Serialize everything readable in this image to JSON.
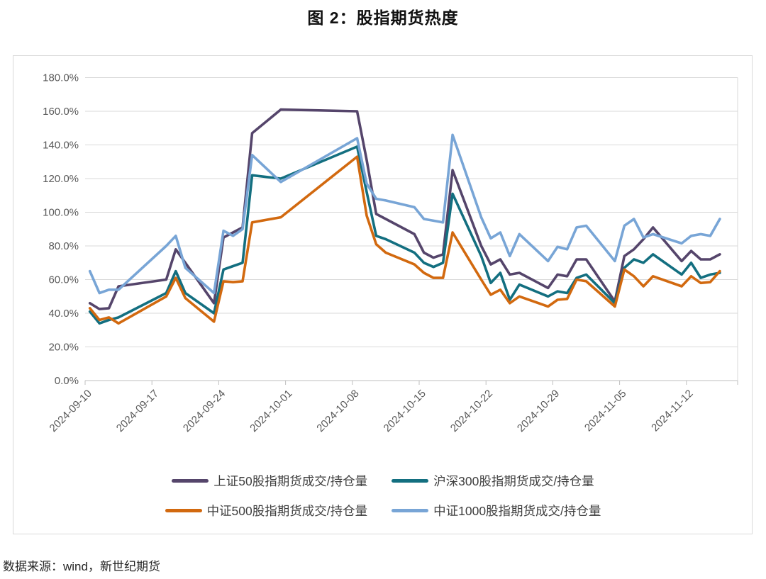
{
  "title": "图 2：股指期货热度",
  "source": "数据来源：wind，新世纪期货",
  "chart_data": {
    "type": "line",
    "unit": "%",
    "grid": true,
    "legend_position": "bottom",
    "y_axis": {
      "min": 0,
      "max": 180,
      "tick_labels": [
        "0.0%",
        "20.0%",
        "40.0%",
        "60.0%",
        "80.0%",
        "100.0%",
        "120.0%",
        "140.0%",
        "160.0%",
        "180.0%"
      ]
    },
    "x_axis": {
      "tick_labels": [
        "2024-09-10",
        "2024-09-17",
        "2024-09-24",
        "2024-10-01",
        "2024-10-08",
        "2024-10-15",
        "2024-10-22",
        "2024-10-29",
        "2024-11-05",
        "2024-11-12"
      ],
      "interval_days": 7
    },
    "dates": [
      "2024-09-10",
      "2024-09-11",
      "2024-09-12",
      "2024-09-13",
      "2024-09-18",
      "2024-09-19",
      "2024-09-20",
      "2024-09-23",
      "2024-09-24",
      "2024-09-25",
      "2024-09-26",
      "2024-09-27",
      "2024-09-30",
      "2024-10-08",
      "2024-10-09",
      "2024-10-10",
      "2024-10-11",
      "2024-10-14",
      "2024-10-15",
      "2024-10-16",
      "2024-10-17",
      "2024-10-18",
      "2024-10-21",
      "2024-10-22",
      "2024-10-23",
      "2024-10-24",
      "2024-10-25",
      "2024-10-28",
      "2024-10-29",
      "2024-10-30",
      "2024-10-31",
      "2024-11-01",
      "2024-11-04",
      "2024-11-05",
      "2024-11-06",
      "2024-11-07",
      "2024-11-08",
      "2024-11-11",
      "2024-11-12",
      "2024-11-13",
      "2024-11-14",
      "2024-11-15"
    ],
    "series": [
      {
        "name": "上证50股指期货成交/持仓量",
        "color": "#55456b",
        "values": [
          46,
          42.5,
          43,
          56,
          60,
          78,
          70,
          46,
          85,
          88,
          91,
          147,
          161,
          160,
          131,
          99,
          96,
          87,
          76,
          73,
          75,
          125,
          80,
          69,
          72,
          63,
          64,
          55,
          63,
          62,
          72,
          72,
          47,
          74,
          78,
          84,
          91,
          71,
          77,
          72,
          72,
          75
        ]
      },
      {
        "name": "沪深300股指期货成交/持仓量",
        "color": "#136f80",
        "values": [
          41,
          34,
          36,
          37.5,
          52,
          65,
          52,
          40,
          66,
          68,
          70,
          122,
          120,
          139,
          112,
          86,
          84,
          76,
          70,
          67.5,
          70,
          111,
          74,
          58,
          64,
          48,
          57,
          50,
          53,
          52,
          61,
          63,
          46,
          67,
          72,
          70,
          75,
          63,
          70,
          61,
          63,
          64
        ]
      },
      {
        "name": "中证500股指期货成交/持仓量",
        "color": "#d2690f",
        "values": [
          43,
          36,
          37.5,
          34,
          50,
          61,
          49,
          35,
          59,
          58.5,
          59,
          94,
          97,
          133,
          98,
          81,
          76,
          69,
          64,
          61,
          61,
          88,
          60,
          51,
          54,
          46,
          50,
          44,
          48,
          48.5,
          60,
          59,
          44,
          66,
          62,
          56,
          62,
          56,
          62,
          58,
          58.5,
          65
        ]
      },
      {
        "name": "中证1000股指期货成交/持仓量",
        "color": "#78a5d6",
        "values": [
          65,
          52,
          54,
          54,
          80,
          86,
          67,
          52,
          89,
          86,
          90,
          134,
          118,
          144,
          117,
          108,
          107,
          103,
          96,
          95,
          94,
          146,
          97,
          84.5,
          88,
          74,
          87,
          71,
          79.5,
          78,
          91,
          92,
          71,
          92,
          96,
          85,
          87,
          81.5,
          86,
          87,
          86,
          96
        ]
      }
    ]
  }
}
